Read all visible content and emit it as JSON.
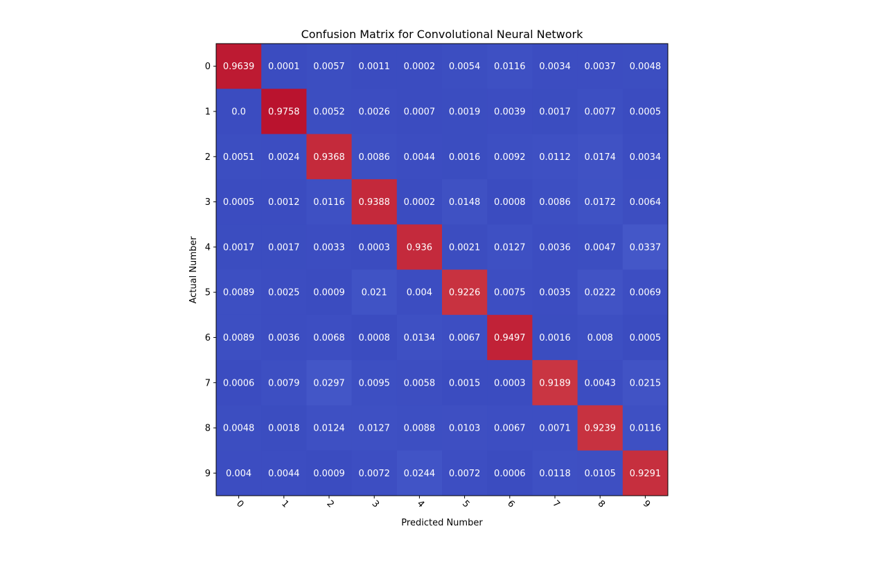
{
  "chart_data": {
    "type": "heatmap",
    "title": "Confusion Matrix for Convolutional Neural Network",
    "xlabel": "Predicted Number",
    "ylabel": "Actual Number",
    "x_categories": [
      "0",
      "1",
      "2",
      "3",
      "4",
      "5",
      "6",
      "7",
      "8",
      "9"
    ],
    "y_categories": [
      "0",
      "1",
      "2",
      "3",
      "4",
      "5",
      "6",
      "7",
      "8",
      "9"
    ],
    "colormap": "coolwarm",
    "value_range": [
      0,
      1
    ],
    "cell_labels": [
      [
        "0.9639",
        "0.0001",
        "0.0057",
        "0.0011",
        "0.0002",
        "0.0054",
        "0.0116",
        "0.0034",
        "0.0037",
        "0.0048"
      ],
      [
        "0.0",
        "0.9758",
        "0.0052",
        "0.0026",
        "0.0007",
        "0.0019",
        "0.0039",
        "0.0017",
        "0.0077",
        "0.0005"
      ],
      [
        "0.0051",
        "0.0024",
        "0.9368",
        "0.0086",
        "0.0044",
        "0.0016",
        "0.0092",
        "0.0112",
        "0.0174",
        "0.0034"
      ],
      [
        "0.0005",
        "0.0012",
        "0.0116",
        "0.9388",
        "0.0002",
        "0.0148",
        "0.0008",
        "0.0086",
        "0.0172",
        "0.0064"
      ],
      [
        "0.0017",
        "0.0017",
        "0.0033",
        "0.0003",
        "0.936",
        "0.0021",
        "0.0127",
        "0.0036",
        "0.0047",
        "0.0337"
      ],
      [
        "0.0089",
        "0.0025",
        "0.0009",
        "0.021",
        "0.004",
        "0.9226",
        "0.0075",
        "0.0035",
        "0.0222",
        "0.0069"
      ],
      [
        "0.0089",
        "0.0036",
        "0.0068",
        "0.0008",
        "0.0134",
        "0.0067",
        "0.9497",
        "0.0016",
        "0.008",
        "0.0005"
      ],
      [
        "0.0006",
        "0.0079",
        "0.0297",
        "0.0095",
        "0.0058",
        "0.0015",
        "0.0003",
        "0.9189",
        "0.0043",
        "0.0215"
      ],
      [
        "0.0048",
        "0.0018",
        "0.0124",
        "0.0127",
        "0.0088",
        "0.0103",
        "0.0067",
        "0.0071",
        "0.9239",
        "0.0116"
      ],
      [
        "0.004",
        "0.0044",
        "0.0009",
        "0.0072",
        "0.0244",
        "0.0072",
        "0.0006",
        "0.0118",
        "0.0105",
        "0.9291"
      ]
    ]
  }
}
